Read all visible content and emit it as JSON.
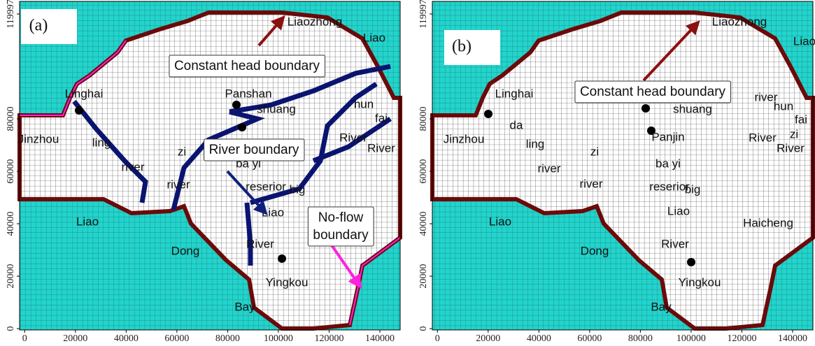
{
  "panels": [
    {
      "label": "(a)",
      "annotations": [
        "Constant head boundary",
        "River boundary",
        "No-flow",
        "boundary"
      ],
      "places": [
        "Liaozhong",
        "Liao",
        "Linghai",
        "Panshan",
        "shuang",
        "Jinzhou",
        "ling",
        "zi",
        "ba yi",
        "river",
        "river",
        "reserior",
        "big",
        "Liao",
        "Liao",
        "Dong",
        "River",
        "Yingkou",
        "Bay",
        "River",
        "hun",
        "fai",
        "River"
      ],
      "xlim": [
        -2000,
        148000
      ],
      "ylim": [
        -500,
        124800
      ],
      "xticks": [
        0,
        20000,
        40000,
        60000,
        80000,
        100000,
        120000,
        140000
      ],
      "yticks": [
        0,
        20000,
        40000,
        60000,
        80000,
        119997
      ]
    },
    {
      "label": "(b)",
      "annotations": [
        "Constant head boundary"
      ],
      "places": [
        "Liaozhong",
        "Liao",
        "Linghai",
        "river",
        "hun",
        "fai",
        "Jinzhou",
        "da",
        "Panjin",
        "zi",
        "River",
        "River",
        "ling",
        "zi",
        "ba yi",
        "river",
        "river",
        "reserior",
        "big",
        "Liao",
        "Liao",
        "Haicheng",
        "Dong",
        "River",
        "Yingkou",
        "Bay",
        "shuang"
      ],
      "xlim": [
        -2000,
        148000
      ],
      "ylim": [
        -500,
        124800
      ],
      "xticks": [
        0,
        20000,
        40000,
        60000,
        80000,
        100000,
        120000,
        140000
      ],
      "yticks": [
        0,
        20000,
        40000,
        60000,
        80000,
        119997
      ]
    }
  ]
}
